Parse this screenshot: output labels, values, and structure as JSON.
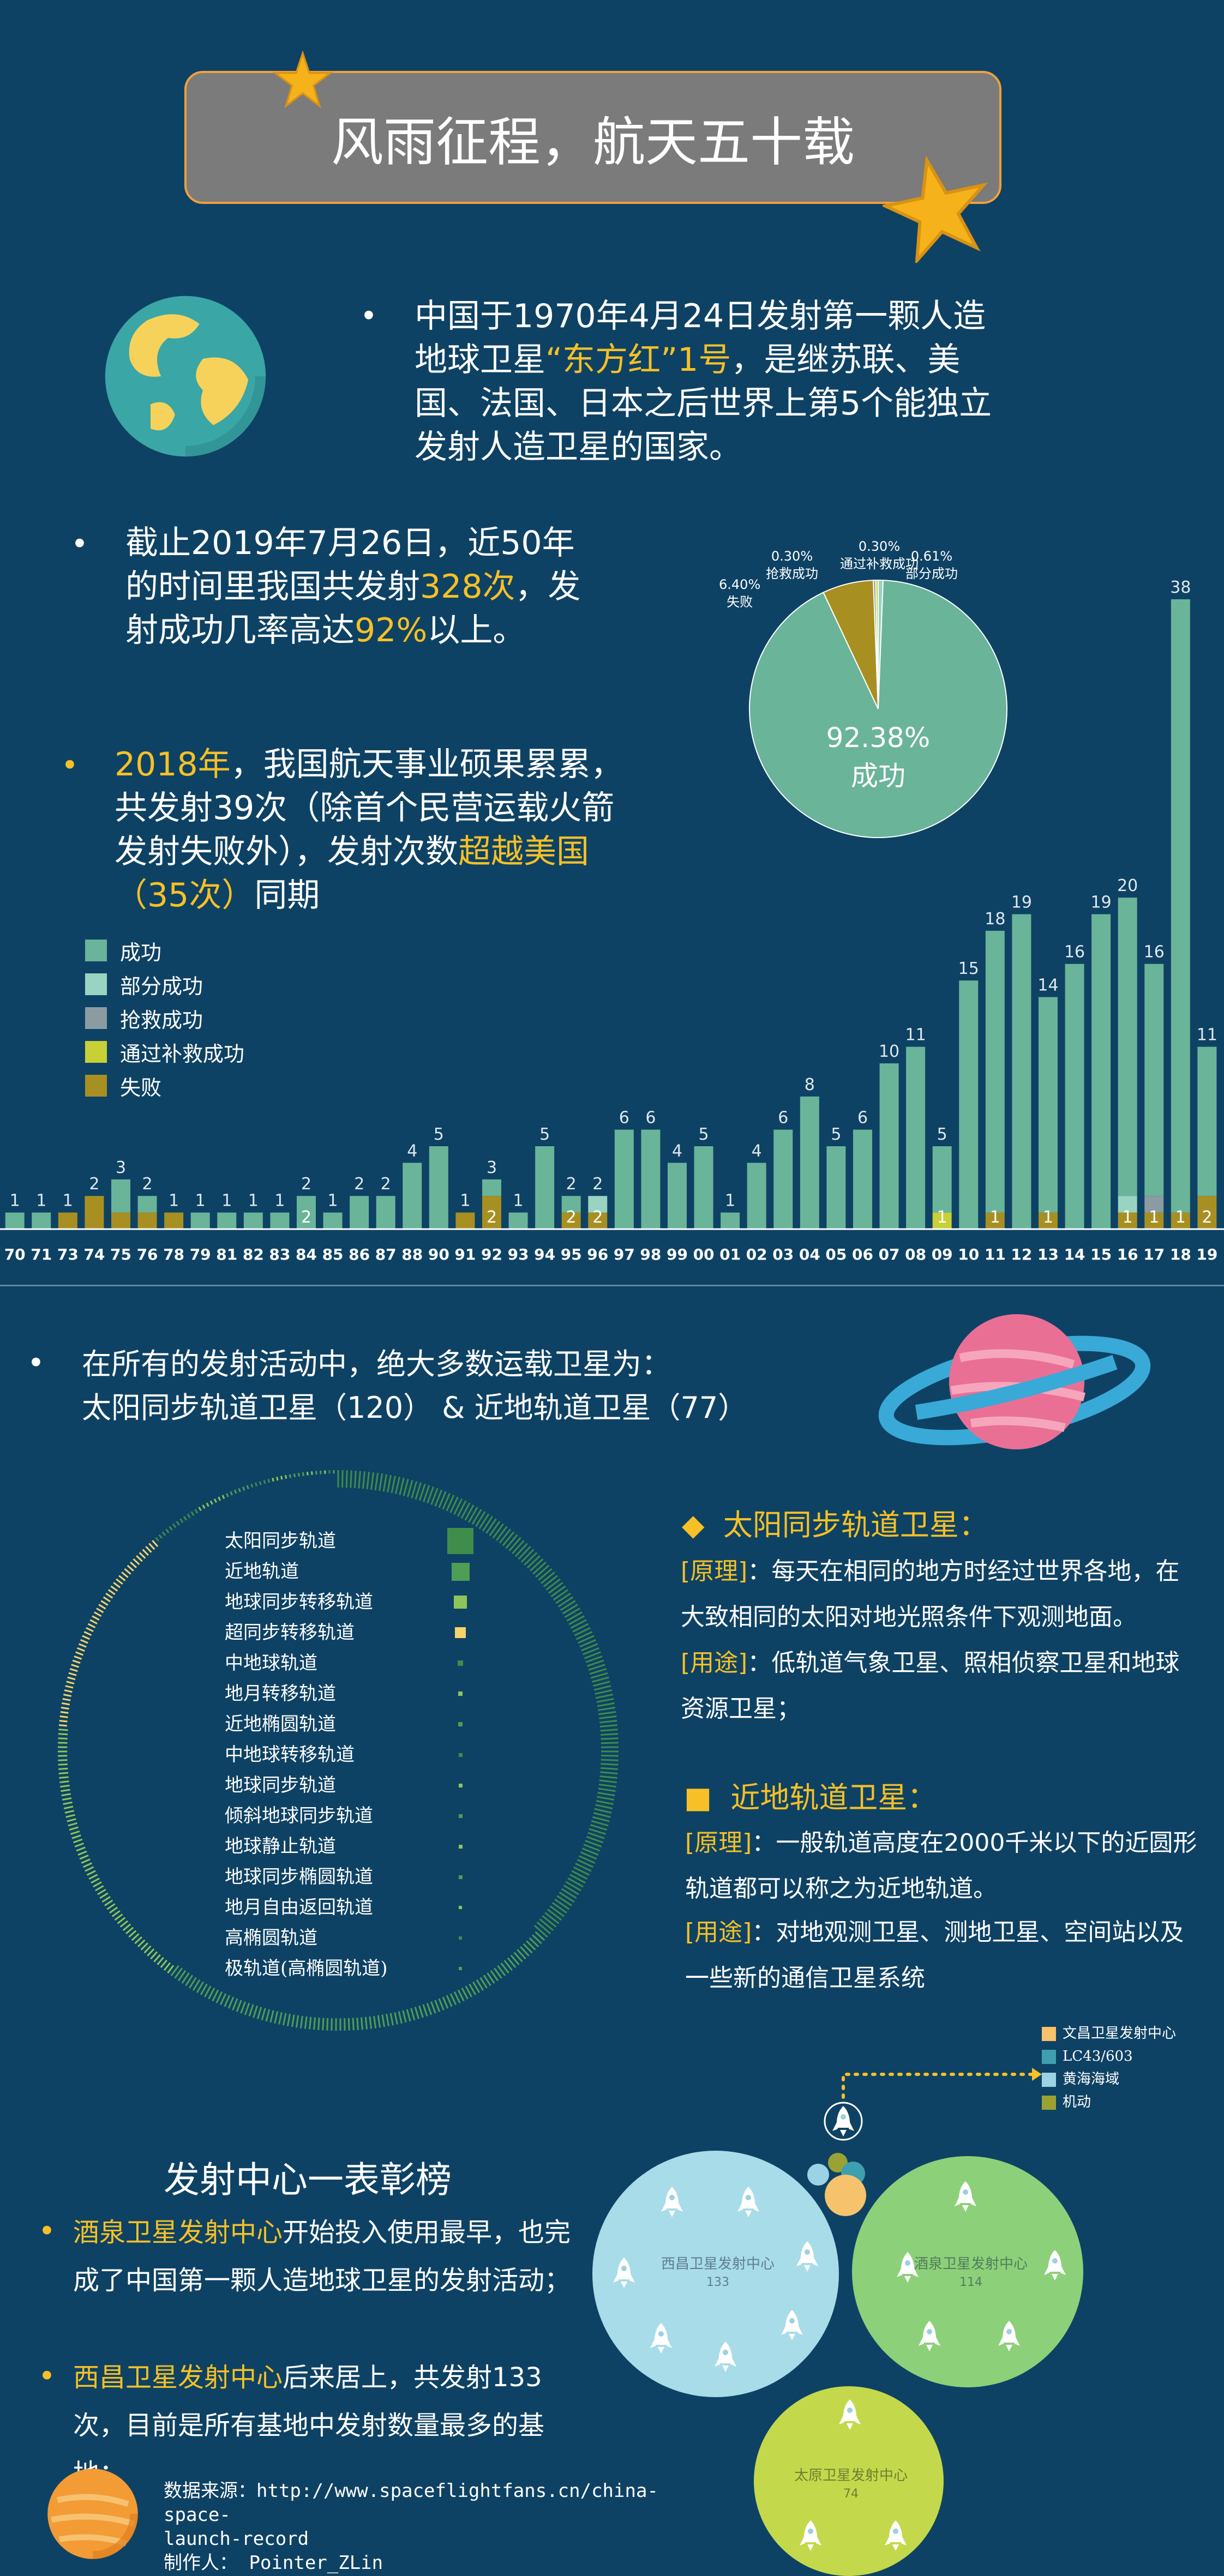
{
  "header": {
    "title": "风雨征程，航天五十载"
  },
  "intro": {
    "p1_pre": "中国于1970年4月24日发射第一颗人造地球卫星",
    "p1_hl": "“东方红”1号",
    "p1_post": "，是继苏联、美国、法国、日本之后世界上第5个能独立发射人造卫星的国家。",
    "p2_pre": "截止2019年7月26日，近50年的时间里我国共发射",
    "p2_hl1": "328次",
    "p2_mid": "，发射成功几率高达",
    "p2_hl2": "92%",
    "p2_post": "以上。",
    "p3_hl1": "2018年",
    "p3_mid": "，我国航天事业硕果累累，共发射39次（除首个民营运载火箭发射失败外），发射次数",
    "p3_hl2": "超越美国（35次）",
    "p3_post": "同期"
  },
  "pie": {
    "center_pct": "92.38%",
    "center_label": "成功",
    "labels": [
      {
        "pct": "6.40%",
        "name": "失败"
      },
      {
        "pct": "0.30%",
        "name": "抢救成功"
      },
      {
        "pct": "0.30%",
        "name": "通过补救成功"
      },
      {
        "pct": "0.61%",
        "name": "部分成功"
      }
    ]
  },
  "colors": {
    "success": "#6ab49a",
    "partial": "#99d3c2",
    "rescue": "#8c9ba2",
    "remedy": "#c9cf37",
    "fail": "#a88f21",
    "bg": "#0e4264",
    "accent": "#f6c026"
  },
  "chart_data": [
    {
      "type": "pie",
      "title": "",
      "slices": [
        {
          "name": "成功",
          "value": 92.38
        },
        {
          "name": "失败",
          "value": 6.4
        },
        {
          "name": "抢救成功",
          "value": 0.3
        },
        {
          "name": "通过补救成功",
          "value": 0.3
        },
        {
          "name": "部分成功",
          "value": 0.61
        }
      ]
    },
    {
      "type": "bar",
      "stacked": true,
      "title": "",
      "categories": [
        "70",
        "71",
        "73",
        "74",
        "75",
        "76",
        "78",
        "79",
        "81",
        "82",
        "83",
        "84",
        "85",
        "86",
        "87",
        "88",
        "90",
        "91",
        "92",
        "93",
        "94",
        "95",
        "96",
        "97",
        "98",
        "99",
        "00",
        "01",
        "02",
        "03",
        "04",
        "05",
        "06",
        "07",
        "08",
        "09",
        "10",
        "11",
        "12",
        "13",
        "14",
        "15",
        "16",
        "17",
        "18",
        "19"
      ],
      "totals": [
        1,
        1,
        1,
        2,
        3,
        2,
        1,
        1,
        1,
        1,
        1,
        2,
        1,
        2,
        2,
        4,
        5,
        1,
        3,
        1,
        5,
        2,
        2,
        6,
        6,
        4,
        5,
        1,
        4,
        6,
        8,
        5,
        6,
        10,
        11,
        5,
        15,
        18,
        19,
        14,
        16,
        19,
        20,
        16,
        38,
        11
      ],
      "series": [
        {
          "name": "成功",
          "values": [
            1,
            1,
            0,
            0,
            2,
            1,
            0,
            1,
            1,
            1,
            1,
            2,
            1,
            2,
            2,
            4,
            5,
            0,
            1,
            1,
            5,
            1,
            0,
            6,
            6,
            4,
            5,
            1,
            4,
            6,
            8,
            5,
            6,
            10,
            11,
            4,
            15,
            17,
            19,
            13,
            16,
            19,
            18,
            14,
            37,
            9
          ]
        },
        {
          "name": "部分成功",
          "values": [
            0,
            0,
            0,
            0,
            0,
            0,
            0,
            0,
            0,
            0,
            0,
            0,
            0,
            0,
            0,
            0,
            0,
            0,
            0,
            0,
            0,
            0,
            1,
            0,
            0,
            0,
            0,
            0,
            0,
            0,
            0,
            0,
            0,
            0,
            0,
            0,
            0,
            0,
            0,
            0,
            0,
            0,
            1,
            0,
            0,
            0
          ]
        },
        {
          "name": "抢救成功",
          "values": [
            0,
            0,
            0,
            0,
            0,
            0,
            0,
            0,
            0,
            0,
            0,
            0,
            0,
            0,
            0,
            0,
            0,
            0,
            0,
            0,
            0,
            0,
            0,
            0,
            0,
            0,
            0,
            0,
            0,
            0,
            0,
            0,
            0,
            0,
            0,
            0,
            0,
            0,
            0,
            0,
            0,
            0,
            0,
            1,
            0,
            0
          ]
        },
        {
          "name": "通过补救成功",
          "values": [
            0,
            0,
            0,
            0,
            0,
            0,
            0,
            0,
            0,
            0,
            0,
            0,
            0,
            0,
            0,
            0,
            0,
            0,
            0,
            0,
            0,
            0,
            0,
            0,
            0,
            0,
            0,
            0,
            0,
            0,
            0,
            0,
            0,
            0,
            0,
            1,
            0,
            0,
            0,
            0,
            0,
            0,
            0,
            0,
            0,
            0
          ]
        },
        {
          "name": "失败",
          "values": [
            0,
            0,
            1,
            2,
            1,
            1,
            1,
            0,
            0,
            0,
            0,
            0,
            0,
            0,
            0,
            0,
            0,
            1,
            2,
            0,
            0,
            1,
            1,
            0,
            0,
            0,
            0,
            0,
            0,
            0,
            0,
            0,
            0,
            0,
            0,
            0,
            0,
            1,
            0,
            1,
            0,
            0,
            1,
            1,
            1,
            2
          ]
        }
      ]
    }
  ],
  "bar_inner_labels": [
    {
      "i": 11,
      "v": "2"
    },
    {
      "i": 18,
      "v": "2"
    },
    {
      "i": 21,
      "v": "2"
    },
    {
      "i": 22,
      "v": "2"
    },
    {
      "i": 35,
      "v": "1"
    },
    {
      "i": 37,
      "v": "1"
    },
    {
      "i": 39,
      "v": "1"
    },
    {
      "i": 42,
      "v": "1"
    },
    {
      "i": 43,
      "v": "1"
    },
    {
      "i": 44,
      "v": "1"
    },
    {
      "i": 45,
      "v": "2"
    }
  ],
  "orbit_section": {
    "summary_line1": "在所有的发射活动中，绝大多数运载卫星为：",
    "summary_line2": "太阳同步轨道卫星（120） & 近地轨道卫星（77）",
    "orbits": [
      {
        "name": "太阳同步轨道",
        "color": "#3f8c4b",
        "level": 120
      },
      {
        "name": "近地轨道",
        "color": "#4e9e56",
        "level": 77
      },
      {
        "name": "地球同步转移轨道",
        "color": "#8cc65a",
        "level": 52
      },
      {
        "name": "超同步转移轨道",
        "color": "#f4d46b",
        "level": 40
      },
      {
        "name": "中地球轨道",
        "color": "#3f8c4b",
        "level": 10
      },
      {
        "name": "地月转移轨道",
        "color": "#8cc65a",
        "level": 6
      },
      {
        "name": "近地椭圆轨道",
        "color": "#4e9e56",
        "level": 5
      },
      {
        "name": "中地球转移轨道",
        "color": "#3f8c4b",
        "level": 4
      },
      {
        "name": "地球同步轨道",
        "color": "#8cc65a",
        "level": 3
      },
      {
        "name": "倾斜地球同步轨道",
        "color": "#4e9e56",
        "level": 3
      },
      {
        "name": "地球静止轨道",
        "color": "#8cc65a",
        "level": 2
      },
      {
        "name": "地球同步椭圆轨道",
        "color": "#4e9e56",
        "level": 2
      },
      {
        "name": "地月自由返回轨道",
        "color": "#8cc65a",
        "level": 1
      },
      {
        "name": "高椭圆轨道",
        "color": "#3f8c4b",
        "level": 1
      },
      {
        "name": "极轨道(高椭圆轨道)",
        "color": "#4e9e56",
        "level": 1
      }
    ],
    "sun_sync_title": "太阳同步轨道卫星：",
    "sun_principle_tag": "[原理]",
    "sun_principle": "：每天在相同的地方时经过世界各地，在大致相同的太阳对地光照条件下观测地面。",
    "sun_use_tag": "[用途]",
    "sun_use": "：低轨道气象卫星、照相侦察卫星和地球资源卫星；",
    "leo_title": "近地轨道卫星：",
    "leo_principle_tag": "[原理]",
    "leo_principle": "：一般轨道高度在2000千米以下的近圆形轨道都可以称之为近地轨道。",
    "leo_use_tag": "[用途]",
    "leo_use": "：对地观测卫星、测地卫星、空间站以及一些新的通信卫星系统"
  },
  "centers": {
    "title": "发射中心一表彰榜",
    "item1_hl": "酒泉卫星发射中心",
    "item1_text": "开始投入使用最早，也完成了中国第一颗人造地球卫星的发射活动；",
    "item2_hl": "西昌卫星发射中心",
    "item2_text": "后来居上，共发射133次，目前是所有基地中发射数量最多的基地；",
    "legend": [
      {
        "name": "文昌卫星发射中心",
        "color": "#f6c26b"
      },
      {
        "name": "LC43/603",
        "color": "#3e9fb0"
      },
      {
        "name": "黄海海域",
        "color": "#9bd3e4"
      },
      {
        "name": "机动",
        "color": "#9aa234"
      }
    ],
    "bubbles": [
      {
        "name": "西昌卫星发射中心",
        "value": "133",
        "color": "#a8dce9"
      },
      {
        "name": "酒泉卫星发射中心",
        "value": "114",
        "color": "#8dd07a"
      },
      {
        "name": "太原卫星发射中心",
        "value": "74",
        "color": "#c3d94b"
      }
    ]
  },
  "footer": {
    "source_line1": "数据来源：http://www.spaceflightfans.cn/china-space-",
    "source_line2": "launch-record",
    "author": "制作人：  Pointer_ZLin"
  }
}
